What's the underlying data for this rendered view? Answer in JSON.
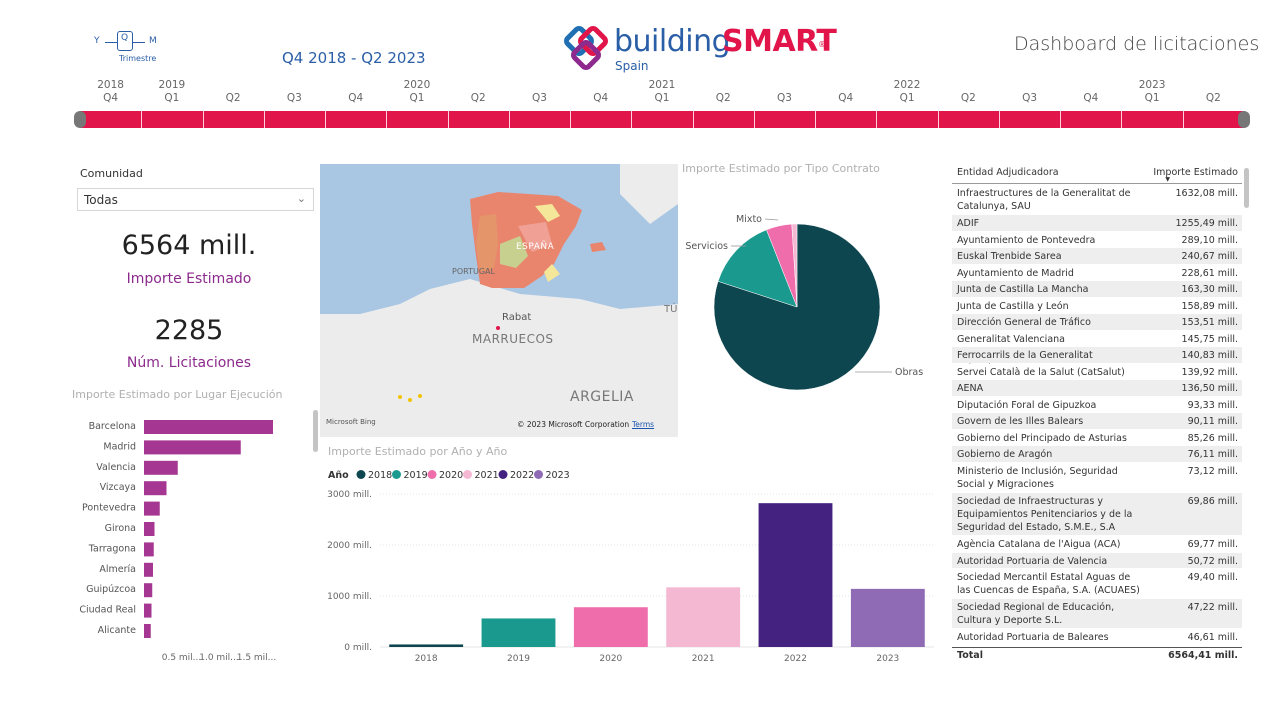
{
  "header": {
    "hierarchy": {
      "y_label": "Y",
      "q_label": "Q",
      "m_label": "M",
      "caption": "Trimestre"
    },
    "period": "Q4 2018 - Q2 2023",
    "logo": {
      "text_plain": "building",
      "text_bold": "SMART",
      "registered": "®",
      "subtitle": "Spain"
    },
    "title": "Dashboard de licitaciones"
  },
  "timeline": {
    "years": [
      {
        "label": "2018",
        "slot": 0
      },
      {
        "label": "2019",
        "slot": 1
      },
      {
        "label": "2020",
        "slot": 5
      },
      {
        "label": "2021",
        "slot": 9
      },
      {
        "label": "2022",
        "slot": 13
      },
      {
        "label": "2023",
        "slot": 17
      }
    ],
    "quarters": [
      "Q4",
      "Q1",
      "Q2",
      "Q3",
      "Q4",
      "Q1",
      "Q2",
      "Q3",
      "Q4",
      "Q1",
      "Q2",
      "Q3",
      "Q4",
      "Q1",
      "Q2",
      "Q3",
      "Q4",
      "Q1",
      "Q2"
    ],
    "bar_color": "#e1154a"
  },
  "slicer": {
    "title": "Comunidad",
    "value": "Todas"
  },
  "kpis": [
    {
      "value": "6564 mill.",
      "label": "Importe Estimado"
    },
    {
      "value": "2285",
      "label": "Núm. Licitaciones"
    }
  ],
  "map": {
    "labels": {
      "spain": "ESPAÑA",
      "portugal": "PORTUGAL",
      "rabat": "Rabat",
      "morocco": "MARRUECOS",
      "algeria": "ARGELIA",
      "tunisia": "TÚ"
    },
    "attribution": "© 2023 Microsoft Corporation",
    "terms": "Terms",
    "bing": "Microsoft Bing"
  },
  "visual_titles": {
    "lugar": "Importe Estimado por Lugar Ejecución",
    "tipo": "Importe Estimado por Tipo Contrato",
    "anio": "Importe Estimado por Año y Año"
  },
  "chart_data": [
    {
      "type": "bar",
      "orientation": "horizontal",
      "title": "Importe Estimado por Lugar Ejecución",
      "categories": [
        "Barcelona",
        "Madrid",
        "Valencia",
        "Vizcaya",
        "Pontevedra",
        "Girona",
        "Tarragona",
        "Almería",
        "Guipúzcoa",
        "Ciudad Real",
        "Alicante"
      ],
      "values": [
        1.72,
        1.29,
        0.45,
        0.3,
        0.21,
        0.14,
        0.13,
        0.12,
        0.11,
        0.1,
        0.09
      ],
      "xticks": [
        "0.5 mil...",
        "1.0 mil...",
        "1.5 mil..."
      ],
      "xtick_values": [
        0.5,
        1.0,
        1.5
      ],
      "xlim": [
        0,
        2.0
      ],
      "unit": "miles de mill.",
      "color": "#a53691"
    },
    {
      "type": "pie",
      "title": "Importe Estimado por Tipo Contrato",
      "labels": [
        "Obras",
        "Servicios",
        "Mixto",
        ""
      ],
      "values": [
        80,
        14,
        5,
        1
      ],
      "colors": [
        "#0e4650",
        "#1a9a8f",
        "#ef6dab",
        "#f5b8d3"
      ]
    },
    {
      "type": "bar",
      "title": "Importe Estimado por Año y Año",
      "legend_title": "Año",
      "categories": [
        "2018",
        "2019",
        "2020",
        "2021",
        "2022",
        "2023"
      ],
      "values": [
        50,
        560,
        780,
        1170,
        2820,
        1140
      ],
      "colors": [
        "#0e4650",
        "#1a9a8f",
        "#ef6dab",
        "#f5b8d3",
        "#44227f",
        "#8e6bb4"
      ],
      "yticks": [
        "0 mill.",
        "1000 mill.",
        "2000 mill.",
        "3000 mill."
      ],
      "ytick_values": [
        0,
        1000,
        2000,
        3000
      ],
      "ylim": [
        0,
        3000
      ],
      "legend_position": "top-left"
    }
  ],
  "table": {
    "headers": {
      "entity": "Entidad Adjudicadora",
      "amount": "Importe Estimado"
    },
    "rows": [
      {
        "entity": "Infraestructures de la Generalitat de Catalunya, SAU",
        "amount": "1632,08 mill.",
        "lines": 2
      },
      {
        "entity": "ADIF",
        "amount": "1255,49 mill.",
        "lines": 1
      },
      {
        "entity": "Ayuntamiento de Pontevedra",
        "amount": "289,10 mill.",
        "lines": 1
      },
      {
        "entity": "Euskal Trenbide Sarea",
        "amount": "240,67 mill.",
        "lines": 1
      },
      {
        "entity": "Ayuntamiento de Madrid",
        "amount": "228,61 mill.",
        "lines": 1
      },
      {
        "entity": "Junta de Castilla La Mancha",
        "amount": "163,30 mill.",
        "lines": 1
      },
      {
        "entity": "Junta de Castilla y León",
        "amount": "158,89 mill.",
        "lines": 1
      },
      {
        "entity": "Dirección General de Tráfico",
        "amount": "153,51 mill.",
        "lines": 1
      },
      {
        "entity": "Generalitat Valenciana",
        "amount": "145,75 mill.",
        "lines": 1
      },
      {
        "entity": "Ferrocarrils de la Generalitat Valenciana",
        "amount": "140,83 mill.",
        "lines": 1
      },
      {
        "entity": "Servei Català de la Salut (CatSalut)",
        "amount": "139,92 mill.",
        "lines": 1
      },
      {
        "entity": "AENA",
        "amount": "136,50 mill.",
        "lines": 1
      },
      {
        "entity": "Diputación Foral de Gipuzkoa",
        "amount": "93,33 mill.",
        "lines": 1
      },
      {
        "entity": "Govern de les Illes Balears",
        "amount": "90,11 mill.",
        "lines": 1
      },
      {
        "entity": "Gobierno del Principado de Asturias",
        "amount": "85,26 mill.",
        "lines": 1
      },
      {
        "entity": "Gobierno de Aragón",
        "amount": "76,11 mill.",
        "lines": 1
      },
      {
        "entity": "Ministerio de Inclusión, Seguridad Social y Migraciones",
        "amount": "73,12 mill.",
        "lines": 2
      },
      {
        "entity": "Sociedad de Infraestructuras y Equipamientos Penitenciarios y de la Seguridad del Estado, S.M.E., S.A",
        "amount": "69,86 mill.",
        "lines": 3
      },
      {
        "entity": "Agència Catalana de l'Aigua (ACA)",
        "amount": "69,77 mill.",
        "lines": 1
      },
      {
        "entity": "Autoridad Portuaria de Valencia",
        "amount": "50,72 mill.",
        "lines": 1
      },
      {
        "entity": "Sociedad Mercantil Estatal Aguas de las Cuencas de España, S.A. (ACUAES)",
        "amount": "49,40 mill.",
        "lines": 2
      },
      {
        "entity": "Sociedad Regional de Educación, Cultura y Deporte S.L.",
        "amount": "47,22 mill.",
        "lines": 2
      },
      {
        "entity": "Autoridad Portuaria de Baleares",
        "amount": "46,61 mill.",
        "lines": 1
      }
    ],
    "total": {
      "label": "Total",
      "amount": "6564,41 mill."
    }
  }
}
